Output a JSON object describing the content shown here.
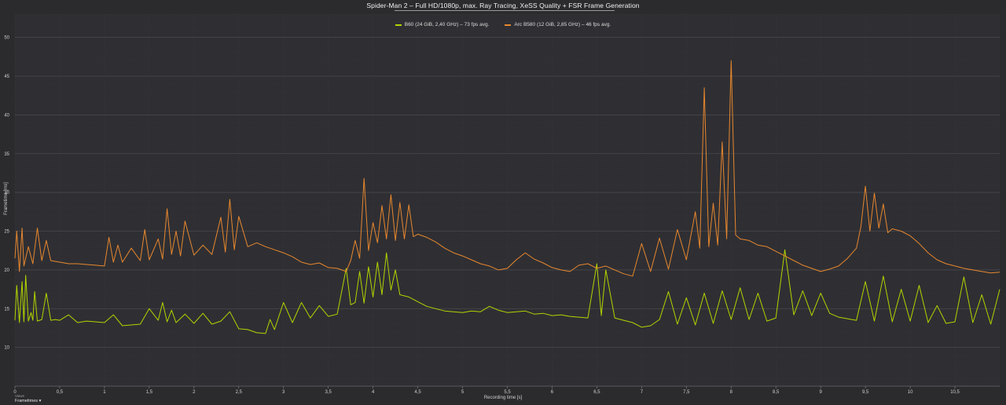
{
  "chart_data": {
    "type": "line",
    "title": "Spider-Man 2 – Full HD/1080p, max. Ray Tracing, XeSS Quality + FSR Frame Generation",
    "xlabel": "Recording time [s]",
    "ylabel": "Frametime [ms]",
    "xlim": [
      0,
      11
    ],
    "ylim": [
      5,
      53
    ],
    "grid": true,
    "legend_position": "top-center",
    "x_ticks": [
      "0",
      "0,5",
      "1",
      "1,5",
      "2",
      "2,5",
      "3",
      "3,5",
      "4",
      "4,5",
      "5",
      "5,5",
      "6",
      "6,5",
      "7",
      "7,5",
      "8",
      "8,5",
      "9",
      "9,5",
      "10",
      "10,5"
    ],
    "y_ticks": [
      "10",
      "15",
      "20",
      "25",
      "30",
      "35",
      "40",
      "45",
      "50"
    ],
    "series": [
      {
        "name": "B60 (24 GiB, 2,40 GHz) – 73 fps avg.",
        "color": "#b4d400",
        "x": [
          0,
          0.02,
          0.05,
          0.08,
          0.1,
          0.12,
          0.15,
          0.18,
          0.2,
          0.22,
          0.25,
          0.3,
          0.35,
          0.4,
          0.45,
          0.5,
          0.6,
          0.7,
          0.8,
          0.9,
          1.0,
          1.1,
          1.2,
          1.3,
          1.4,
          1.5,
          1.6,
          1.65,
          1.7,
          1.75,
          1.8,
          1.9,
          2.0,
          2.1,
          2.2,
          2.3,
          2.4,
          2.5,
          2.6,
          2.7,
          2.8,
          2.85,
          2.9,
          3.0,
          3.1,
          3.2,
          3.3,
          3.4,
          3.5,
          3.6,
          3.7,
          3.75,
          3.8,
          3.85,
          3.9,
          3.95,
          4.0,
          4.05,
          4.1,
          4.15,
          4.2,
          4.25,
          4.3,
          4.4,
          4.5,
          4.6,
          4.7,
          4.8,
          4.9,
          5.0,
          5.1,
          5.2,
          5.3,
          5.4,
          5.5,
          5.6,
          5.7,
          5.8,
          5.9,
          6.0,
          6.1,
          6.2,
          6.3,
          6.4,
          6.5,
          6.55,
          6.6,
          6.7,
          6.8,
          6.9,
          7.0,
          7.1,
          7.2,
          7.3,
          7.4,
          7.5,
          7.6,
          7.7,
          7.8,
          7.9,
          8.0,
          8.1,
          8.2,
          8.3,
          8.4,
          8.5,
          8.6,
          8.7,
          8.8,
          8.9,
          9.0,
          9.1,
          9.2,
          9.3,
          9.4,
          9.5,
          9.6,
          9.7,
          9.8,
          9.9,
          10.0,
          10.1,
          10.2,
          10.3,
          10.4,
          10.5,
          10.6,
          10.7,
          10.8,
          10.9,
          11.0
        ],
        "values": [
          13.5,
          18.0,
          13.2,
          18.5,
          13.3,
          19.3,
          13.4,
          14.5,
          13.5,
          17.2,
          13.4,
          13.6,
          17.0,
          13.5,
          13.6,
          13.5,
          14.2,
          13.2,
          13.4,
          13.3,
          13.2,
          14.2,
          12.8,
          12.9,
          13.0,
          15.0,
          13.5,
          15.8,
          13.3,
          14.8,
          13.2,
          14.3,
          13.1,
          14.4,
          13.0,
          13.4,
          14.6,
          12.4,
          12.3,
          11.9,
          11.8,
          13.6,
          12.3,
          15.8,
          13.2,
          15.8,
          13.8,
          15.4,
          14.0,
          14.3,
          20.2,
          15.5,
          15.8,
          19.8,
          15.7,
          20.4,
          16.5,
          21.0,
          16.8,
          22.2,
          17.4,
          20.0,
          16.8,
          16.5,
          15.9,
          15.3,
          15.0,
          14.7,
          14.6,
          14.5,
          14.7,
          14.6,
          15.3,
          14.8,
          14.5,
          14.6,
          14.7,
          14.3,
          14.4,
          14.1,
          14.2,
          14.0,
          13.9,
          13.8,
          20.8,
          14.1,
          20.0,
          13.8,
          13.5,
          13.2,
          12.6,
          12.8,
          13.6,
          17.2,
          13.0,
          16.4,
          12.9,
          17.0,
          13.1,
          17.3,
          13.6,
          17.7,
          13.6,
          17.0,
          13.4,
          13.8,
          22.6,
          14.2,
          17.3,
          14.1,
          17.0,
          14.4,
          13.9,
          13.7,
          13.5,
          18.5,
          13.4,
          19.2,
          13.3,
          17.5,
          13.4,
          18.0,
          13.2,
          15.4,
          13.1,
          13.3,
          19.1,
          13.2,
          16.8,
          13.0,
          17.5
        ]
      },
      {
        "name": "Arc B580 (12 GiB, 2,85 GHz) – 46 fps avg.",
        "color": "#e8872e",
        "x": [
          0,
          0.02,
          0.05,
          0.08,
          0.1,
          0.15,
          0.2,
          0.25,
          0.3,
          0.35,
          0.4,
          0.5,
          0.6,
          0.7,
          0.8,
          0.9,
          1.0,
          1.05,
          1.1,
          1.15,
          1.2,
          1.3,
          1.4,
          1.45,
          1.5,
          1.6,
          1.65,
          1.7,
          1.75,
          1.8,
          1.85,
          1.9,
          2.0,
          2.1,
          2.2,
          2.3,
          2.35,
          2.4,
          2.45,
          2.5,
          2.6,
          2.7,
          2.8,
          2.9,
          3.0,
          3.1,
          3.2,
          3.3,
          3.4,
          3.5,
          3.6,
          3.7,
          3.75,
          3.8,
          3.85,
          3.9,
          3.95,
          4.0,
          4.05,
          4.1,
          4.15,
          4.2,
          4.25,
          4.3,
          4.35,
          4.4,
          4.45,
          4.5,
          4.6,
          4.7,
          4.8,
          4.9,
          5.0,
          5.1,
          5.2,
          5.3,
          5.4,
          5.5,
          5.6,
          5.7,
          5.8,
          5.9,
          6.0,
          6.1,
          6.2,
          6.3,
          6.4,
          6.5,
          6.6,
          6.7,
          6.8,
          6.9,
          7.0,
          7.1,
          7.2,
          7.3,
          7.4,
          7.5,
          7.6,
          7.65,
          7.7,
          7.75,
          7.8,
          7.85,
          7.9,
          7.95,
          8.0,
          8.05,
          8.1,
          8.2,
          8.3,
          8.4,
          8.5,
          8.6,
          8.7,
          8.8,
          8.9,
          9.0,
          9.1,
          9.2,
          9.3,
          9.4,
          9.45,
          9.5,
          9.55,
          9.6,
          9.65,
          9.7,
          9.75,
          9.8,
          9.9,
          10.0,
          10.1,
          10.2,
          10.3,
          10.4,
          10.5,
          10.6,
          10.7,
          10.8,
          10.9,
          11.0
        ],
        "values": [
          21.5,
          25.0,
          19.8,
          25.4,
          20.5,
          23.0,
          20.8,
          25.4,
          21.2,
          23.8,
          21.2,
          21.0,
          20.8,
          20.8,
          20.7,
          20.6,
          20.5,
          24.2,
          21.0,
          23.2,
          21.0,
          22.8,
          21.2,
          25.2,
          21.3,
          24.0,
          21.4,
          27.9,
          22.0,
          25.0,
          21.8,
          26.3,
          21.9,
          23.2,
          22.0,
          26.8,
          22.3,
          29.1,
          22.6,
          26.9,
          23.0,
          23.5,
          23.0,
          22.6,
          22.2,
          21.7,
          21.0,
          20.7,
          20.9,
          20.3,
          20.2,
          19.8,
          21.2,
          23.8,
          21.5,
          31.8,
          22.5,
          26.1,
          23.5,
          28.3,
          24.0,
          29.7,
          23.8,
          28.7,
          24.0,
          28.4,
          24.3,
          24.6,
          24.2,
          23.6,
          22.8,
          22.2,
          21.8,
          21.3,
          20.8,
          20.5,
          20.0,
          20.2,
          21.3,
          22.2,
          21.4,
          20.9,
          20.3,
          20.0,
          19.8,
          20.6,
          20.8,
          20.2,
          20.5,
          20.0,
          19.5,
          19.2,
          23.4,
          19.8,
          24.1,
          20.1,
          25.2,
          21.3,
          27.5,
          22.8,
          43.5,
          23.0,
          28.6,
          23.2,
          36.5,
          24.0,
          47.0,
          24.5,
          24.0,
          23.8,
          23.2,
          23.0,
          22.4,
          21.8,
          21.2,
          20.6,
          20.2,
          19.8,
          20.1,
          20.5,
          21.5,
          22.8,
          25.6,
          30.8,
          25.0,
          29.9,
          25.4,
          28.5,
          24.8,
          25.3,
          25.0,
          24.4,
          23.4,
          22.2,
          21.3,
          20.8,
          20.5,
          20.2,
          20.0,
          19.8,
          19.6,
          19.7
        ]
      }
    ]
  },
  "footer": {
    "views_label": "Views",
    "dropdown_value": "Frametimes",
    "dropdown_icon": "chevron-down-icon"
  }
}
